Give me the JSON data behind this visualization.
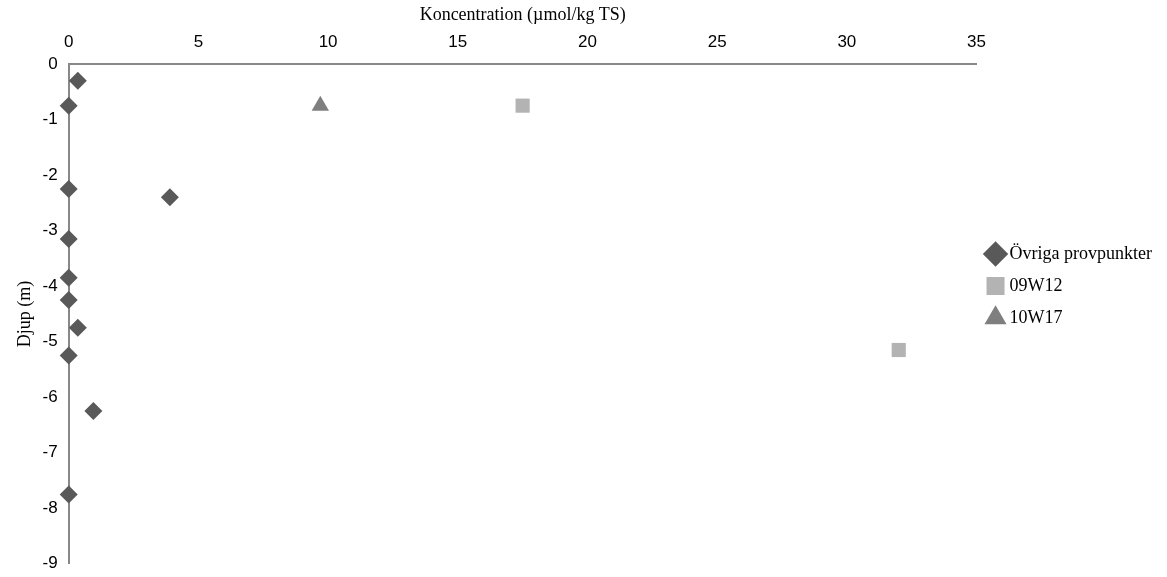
{
  "chart_data": {
    "type": "scatter",
    "xlabel": "Koncentration (µmol/kg TS)",
    "ylabel": "Djup (m)",
    "xlim": [
      0,
      35
    ],
    "xticks": [
      0,
      5,
      10,
      15,
      20,
      25,
      30,
      35
    ],
    "ylim": [
      -9,
      0
    ],
    "yticks": [
      -9,
      -8,
      -7,
      -6,
      -5,
      -4,
      -3,
      -2,
      -1,
      0
    ],
    "grid": false,
    "legend": "right",
    "series": [
      {
        "name": "Övriga provpunkter",
        "color": "#595959",
        "marker": "diamond",
        "x": [
          0.35,
          0,
          0,
          3.9,
          0,
          0,
          0,
          0.35,
          0,
          0.95,
          0
        ],
        "values": [
          -0.3,
          -0.75,
          -2.25,
          -2.4,
          -3.15,
          -3.85,
          -4.25,
          -4.75,
          -5.25,
          -6.25,
          -7.75
        ]
      },
      {
        "name": "09W12",
        "color": "#b3b3b3",
        "marker": "square",
        "x": [
          17.5,
          32
        ],
        "values": [
          -0.75,
          -5.15
        ]
      },
      {
        "name": "10W17",
        "color": "#7f7f7f",
        "marker": "triangle",
        "x": [
          9.7
        ],
        "values": [
          -0.75
        ]
      }
    ]
  }
}
